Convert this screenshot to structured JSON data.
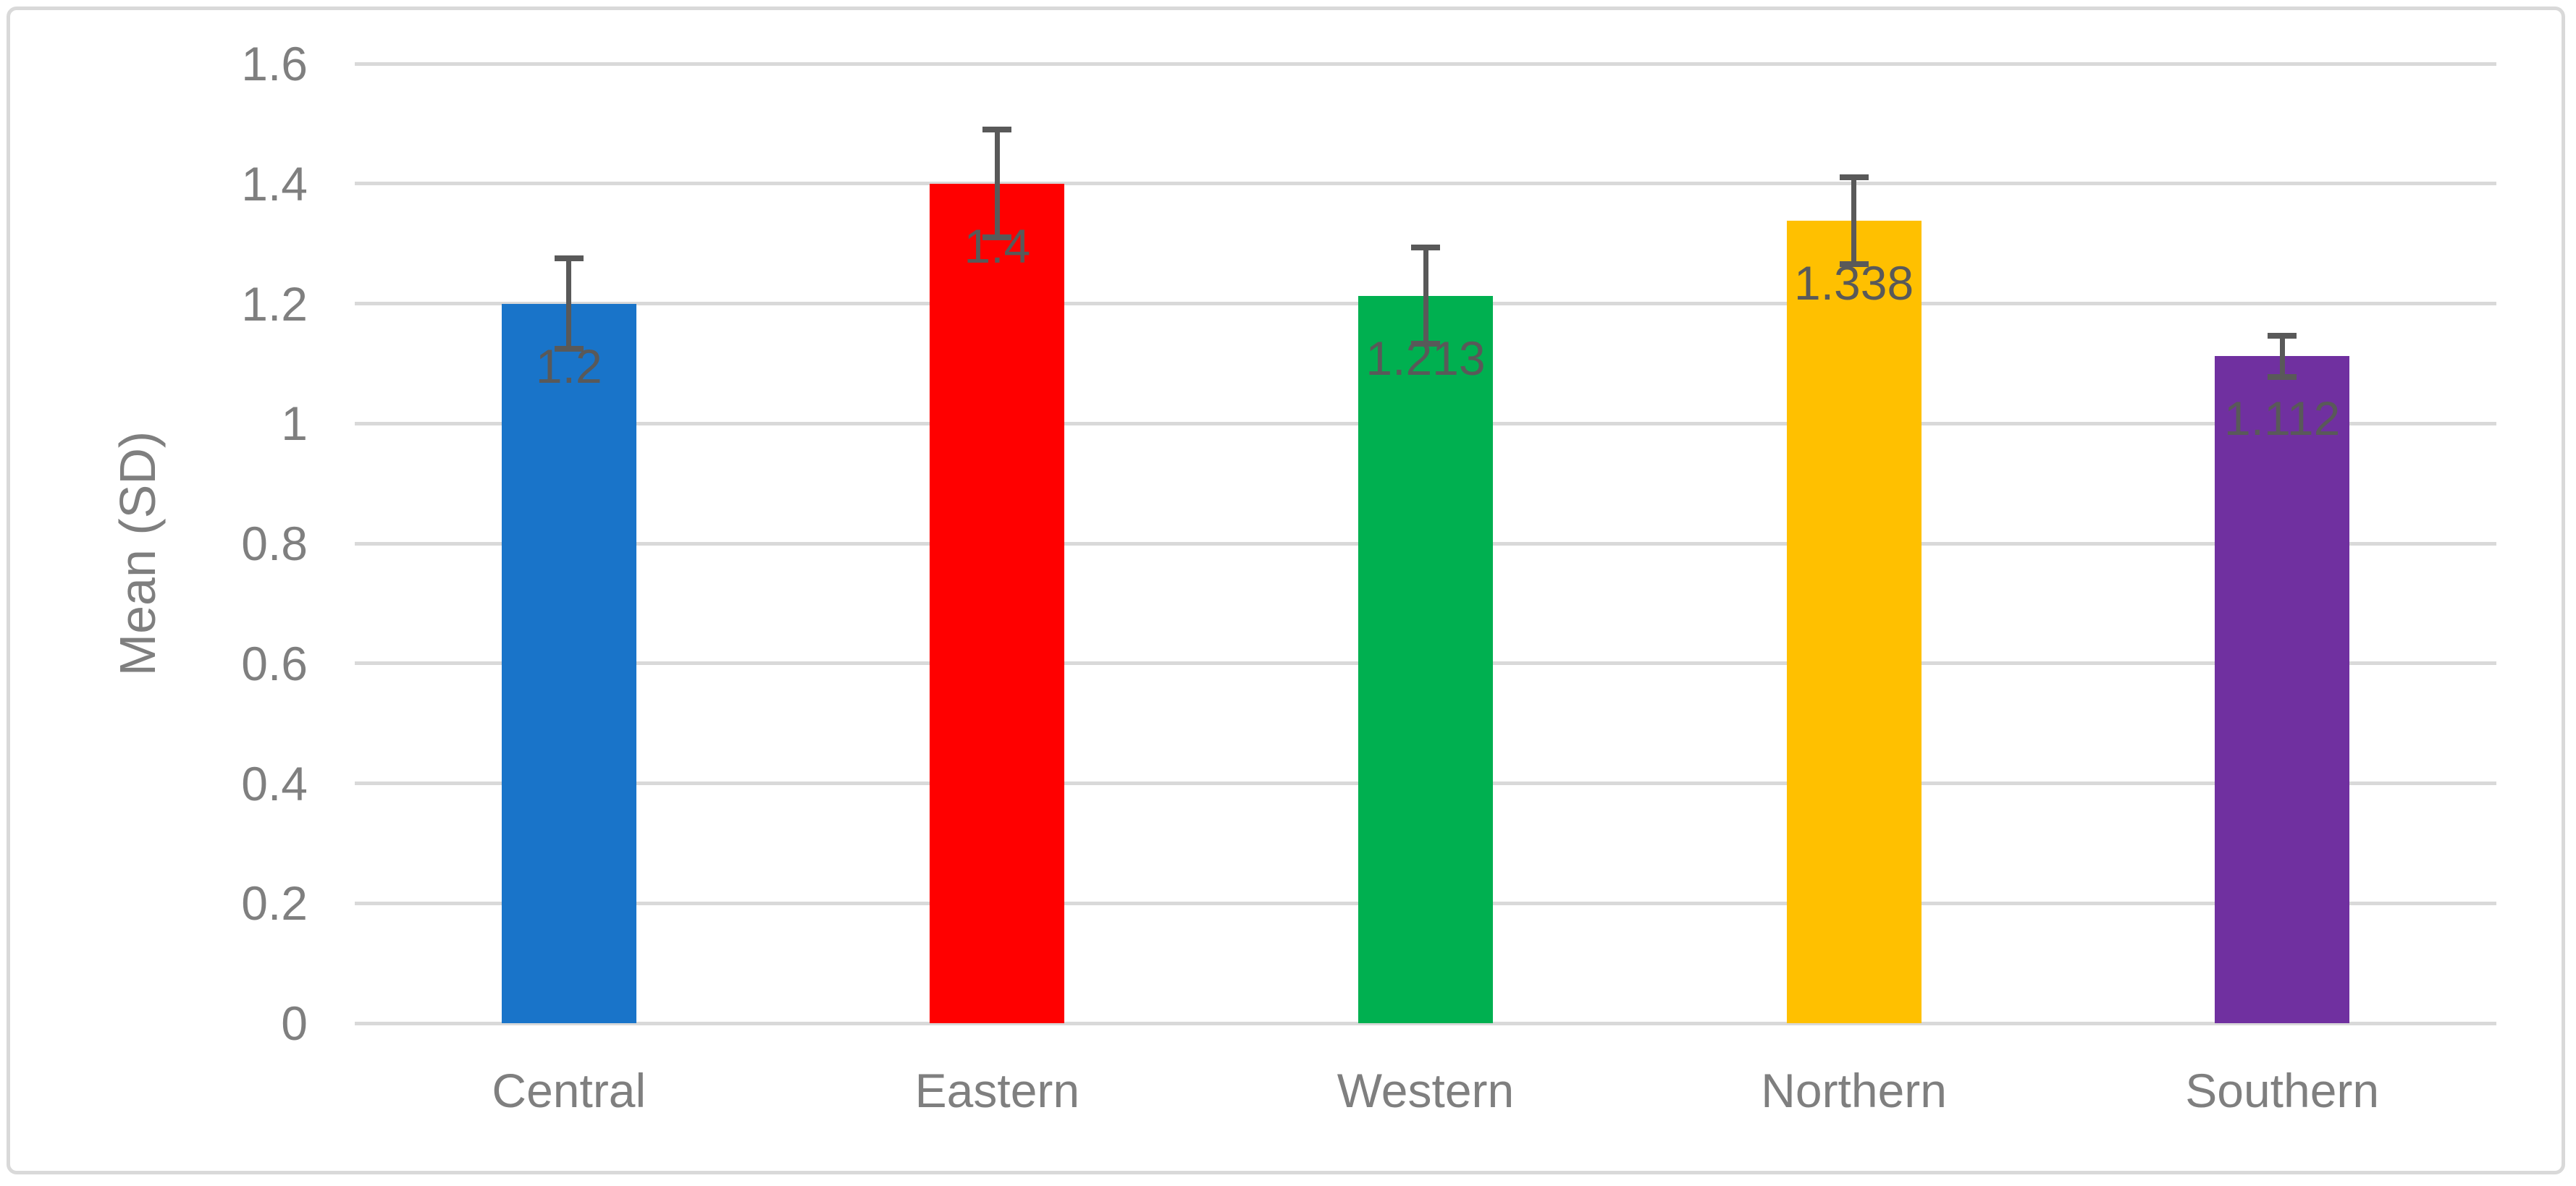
{
  "chart_data": {
    "type": "bar",
    "title": "",
    "xlabel": "",
    "ylabel": "Mean (SD)",
    "categories": [
      "Central",
      "Eastern",
      "Western",
      "Northern",
      "Southern"
    ],
    "values": [
      1.2,
      1.4,
      1.213,
      1.338,
      1.112
    ],
    "data_labels": [
      "1.2",
      "1.4",
      "1.213",
      "1.338",
      "1.112"
    ],
    "error_bars": {
      "plus": [
        0.075,
        0.09,
        0.08,
        0.072,
        0.034
      ],
      "minus": [
        0.075,
        0.09,
        0.08,
        0.072,
        0.034
      ]
    },
    "bar_colors": [
      "#1974C9",
      "#FF0000",
      "#00B050",
      "#FFC000",
      "#7030A0"
    ],
    "y_ticks": [
      "0",
      "0.2",
      "0.4",
      "0.6",
      "0.8",
      "1",
      "1.2",
      "1.4",
      "1.6"
    ],
    "y_tick_values": [
      0,
      0.2,
      0.4,
      0.6,
      0.8,
      1.0,
      1.2,
      1.4,
      1.6
    ],
    "ylim": [
      0,
      1.6
    ],
    "grid": true,
    "legend_position": "none",
    "colors": {
      "gridline": "#D9D9D9",
      "axis_line": "#D9D9D9",
      "error_bar": "#595959",
      "data_label_text": "#595959",
      "axis_text": "#7F7F7F",
      "chart_border": "#D9D9D9",
      "background": "#FFFFFF"
    }
  }
}
